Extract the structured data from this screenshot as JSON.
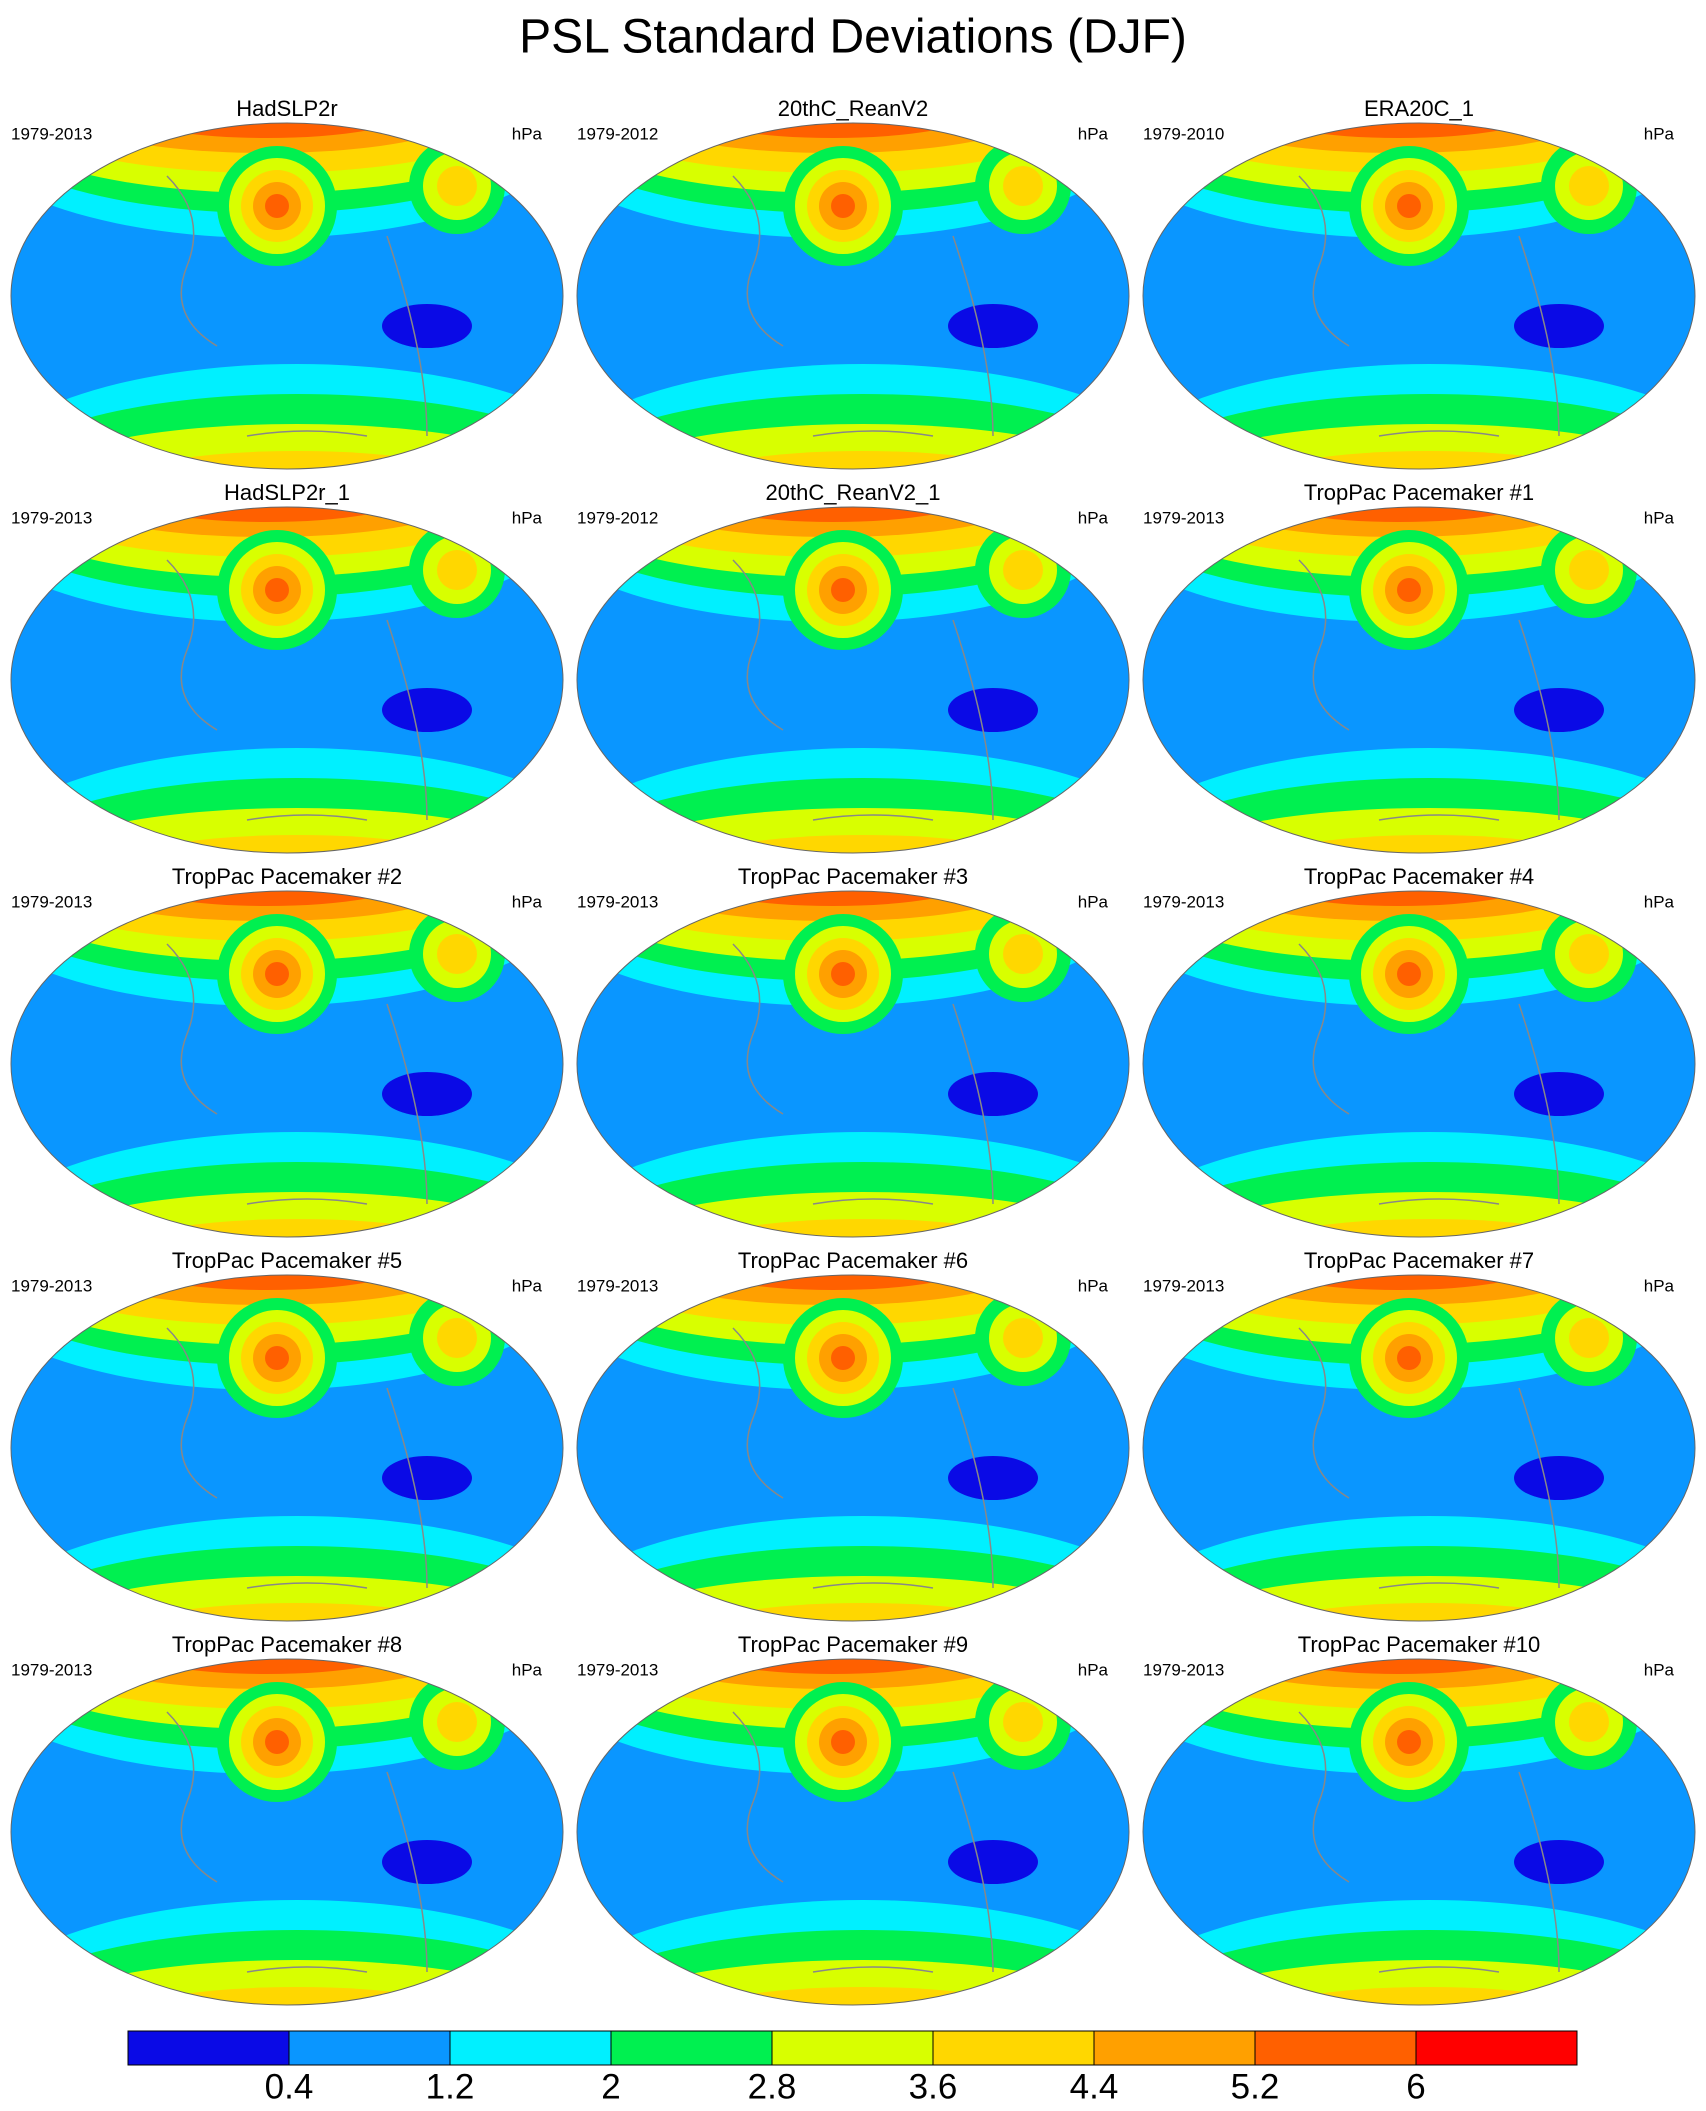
{
  "title": "PSL Standard Deviations (DJF)",
  "panels": [
    {
      "title": "HadSLP2r",
      "period": "1979-2013",
      "units": "hPa"
    },
    {
      "title": "20thC_ReanV2",
      "period": "1979-2012",
      "units": "hPa"
    },
    {
      "title": "ERA20C_1",
      "period": "1979-2010",
      "units": "hPa"
    },
    {
      "title": "HadSLP2r_1",
      "period": "1979-2013",
      "units": "hPa"
    },
    {
      "title": "20thC_ReanV2_1",
      "period": "1979-2012",
      "units": "hPa"
    },
    {
      "title": "TropPac Pacemaker #1",
      "period": "1979-2013",
      "units": "hPa"
    },
    {
      "title": "TropPac Pacemaker #2",
      "period": "1979-2013",
      "units": "hPa"
    },
    {
      "title": "TropPac Pacemaker #3",
      "period": "1979-2013",
      "units": "hPa"
    },
    {
      "title": "TropPac Pacemaker #4",
      "period": "1979-2013",
      "units": "hPa"
    },
    {
      "title": "TropPac Pacemaker #5",
      "period": "1979-2013",
      "units": "hPa"
    },
    {
      "title": "TropPac Pacemaker #6",
      "period": "1979-2013",
      "units": "hPa"
    },
    {
      "title": "TropPac Pacemaker #7",
      "period": "1979-2013",
      "units": "hPa"
    },
    {
      "title": "TropPac Pacemaker #8",
      "period": "1979-2013",
      "units": "hPa"
    },
    {
      "title": "TropPac Pacemaker #9",
      "period": "1979-2013",
      "units": "hPa"
    },
    {
      "title": "TropPac Pacemaker #10",
      "period": "1979-2013",
      "units": "hPa"
    }
  ],
  "colorbar": {
    "colors": [
      "#0a0ae6",
      "#0a96ff",
      "#00f0ff",
      "#00f050",
      "#d8ff00",
      "#ffd700",
      "#ffa000",
      "#ff6000",
      "#ff0000"
    ],
    "ticks": [
      0.4,
      1.2,
      2,
      2.8,
      3.6,
      4.4,
      5.2,
      6
    ]
  }
}
